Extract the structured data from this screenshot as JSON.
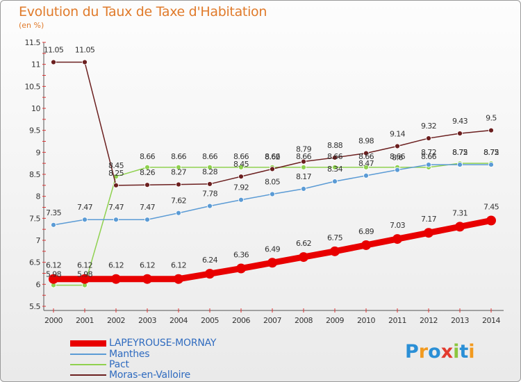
{
  "chart_data": {
    "type": "line",
    "title": "Evolution du Taux de Taxe d'Habitation",
    "subtitle": "(en %)",
    "xlabel": "",
    "ylabel": "",
    "x": [
      "2000",
      "2001",
      "2002",
      "2003",
      "2004",
      "2005",
      "2006",
      "2007",
      "2008",
      "2009",
      "2010",
      "2011",
      "2012",
      "2013",
      "2014"
    ],
    "ylim": [
      5.5,
      11.5
    ],
    "yticks": [
      "5.5",
      "6",
      "6.5",
      "7",
      "7.5",
      "8",
      "8.5",
      "9",
      "9.5",
      "10",
      "10.5",
      "11",
      "11.5"
    ],
    "grid": false,
    "legend_position": "bottom-left",
    "series": [
      {
        "name": "LAPEYROUSE-MORNAY",
        "color": "#e80000",
        "values": [
          6.12,
          6.12,
          6.12,
          6.12,
          6.12,
          6.24,
          6.36,
          6.49,
          6.62,
          6.75,
          6.89,
          7.03,
          7.17,
          7.31,
          7.45
        ],
        "labels": [
          "6.12",
          "6.12",
          "6.12",
          "6.12",
          "6.12",
          "6.24",
          "6.36",
          "6.49",
          "6.62",
          "6.75",
          "6.89",
          "7.03",
          "7.17",
          "7.31",
          "7.45"
        ]
      },
      {
        "name": "Manthes",
        "color": "#5b9bd5",
        "values": [
          7.35,
          7.47,
          7.47,
          7.47,
          7.62,
          7.78,
          7.92,
          8.05,
          8.17,
          8.34,
          8.47,
          8.6,
          8.72,
          8.72,
          8.72
        ],
        "labels": [
          "7.35",
          "7.47",
          "7.47",
          "7.47",
          "7.62",
          "7.78",
          "7.92",
          "8.05",
          "8.17",
          "8.34",
          "8.47",
          "8.6",
          "8.72",
          "8.72",
          "8.72"
        ]
      },
      {
        "name": "Pact",
        "color": "#8fd14f",
        "values": [
          5.98,
          5.98,
          8.45,
          8.66,
          8.66,
          8.66,
          8.66,
          8.66,
          8.66,
          8.66,
          8.66,
          8.66,
          8.66,
          8.75,
          8.75
        ],
        "labels": [
          "5.98",
          "5.98",
          "8.45",
          "8.66",
          "8.66",
          "8.66",
          "8.66",
          "8.66",
          "8.66",
          "8.66",
          "8.66",
          "8.66",
          "8.66",
          "8.75",
          "8.75"
        ]
      },
      {
        "name": "Moras-en-Valloire",
        "color": "#6b1f1f",
        "values": [
          11.05,
          11.05,
          8.25,
          8.26,
          8.27,
          8.28,
          8.45,
          8.62,
          8.79,
          8.88,
          8.98,
          9.14,
          9.32,
          9.43,
          9.5
        ],
        "labels": [
          "11.05",
          "11.05",
          "8.25",
          "8.26",
          "8.27",
          "8.28",
          "8.45",
          "8.62",
          "8.79",
          "8.88",
          "8.98",
          "9.14",
          "9.32",
          "9.43",
          "9.5"
        ]
      }
    ]
  },
  "logo": {
    "text": "Proxiti",
    "colors": [
      "#2a8fd6",
      "#f29a1f",
      "#2a8fd6",
      "#e23b2e",
      "#8cc63f",
      "#2a8fd6",
      "#f29a1f"
    ]
  }
}
